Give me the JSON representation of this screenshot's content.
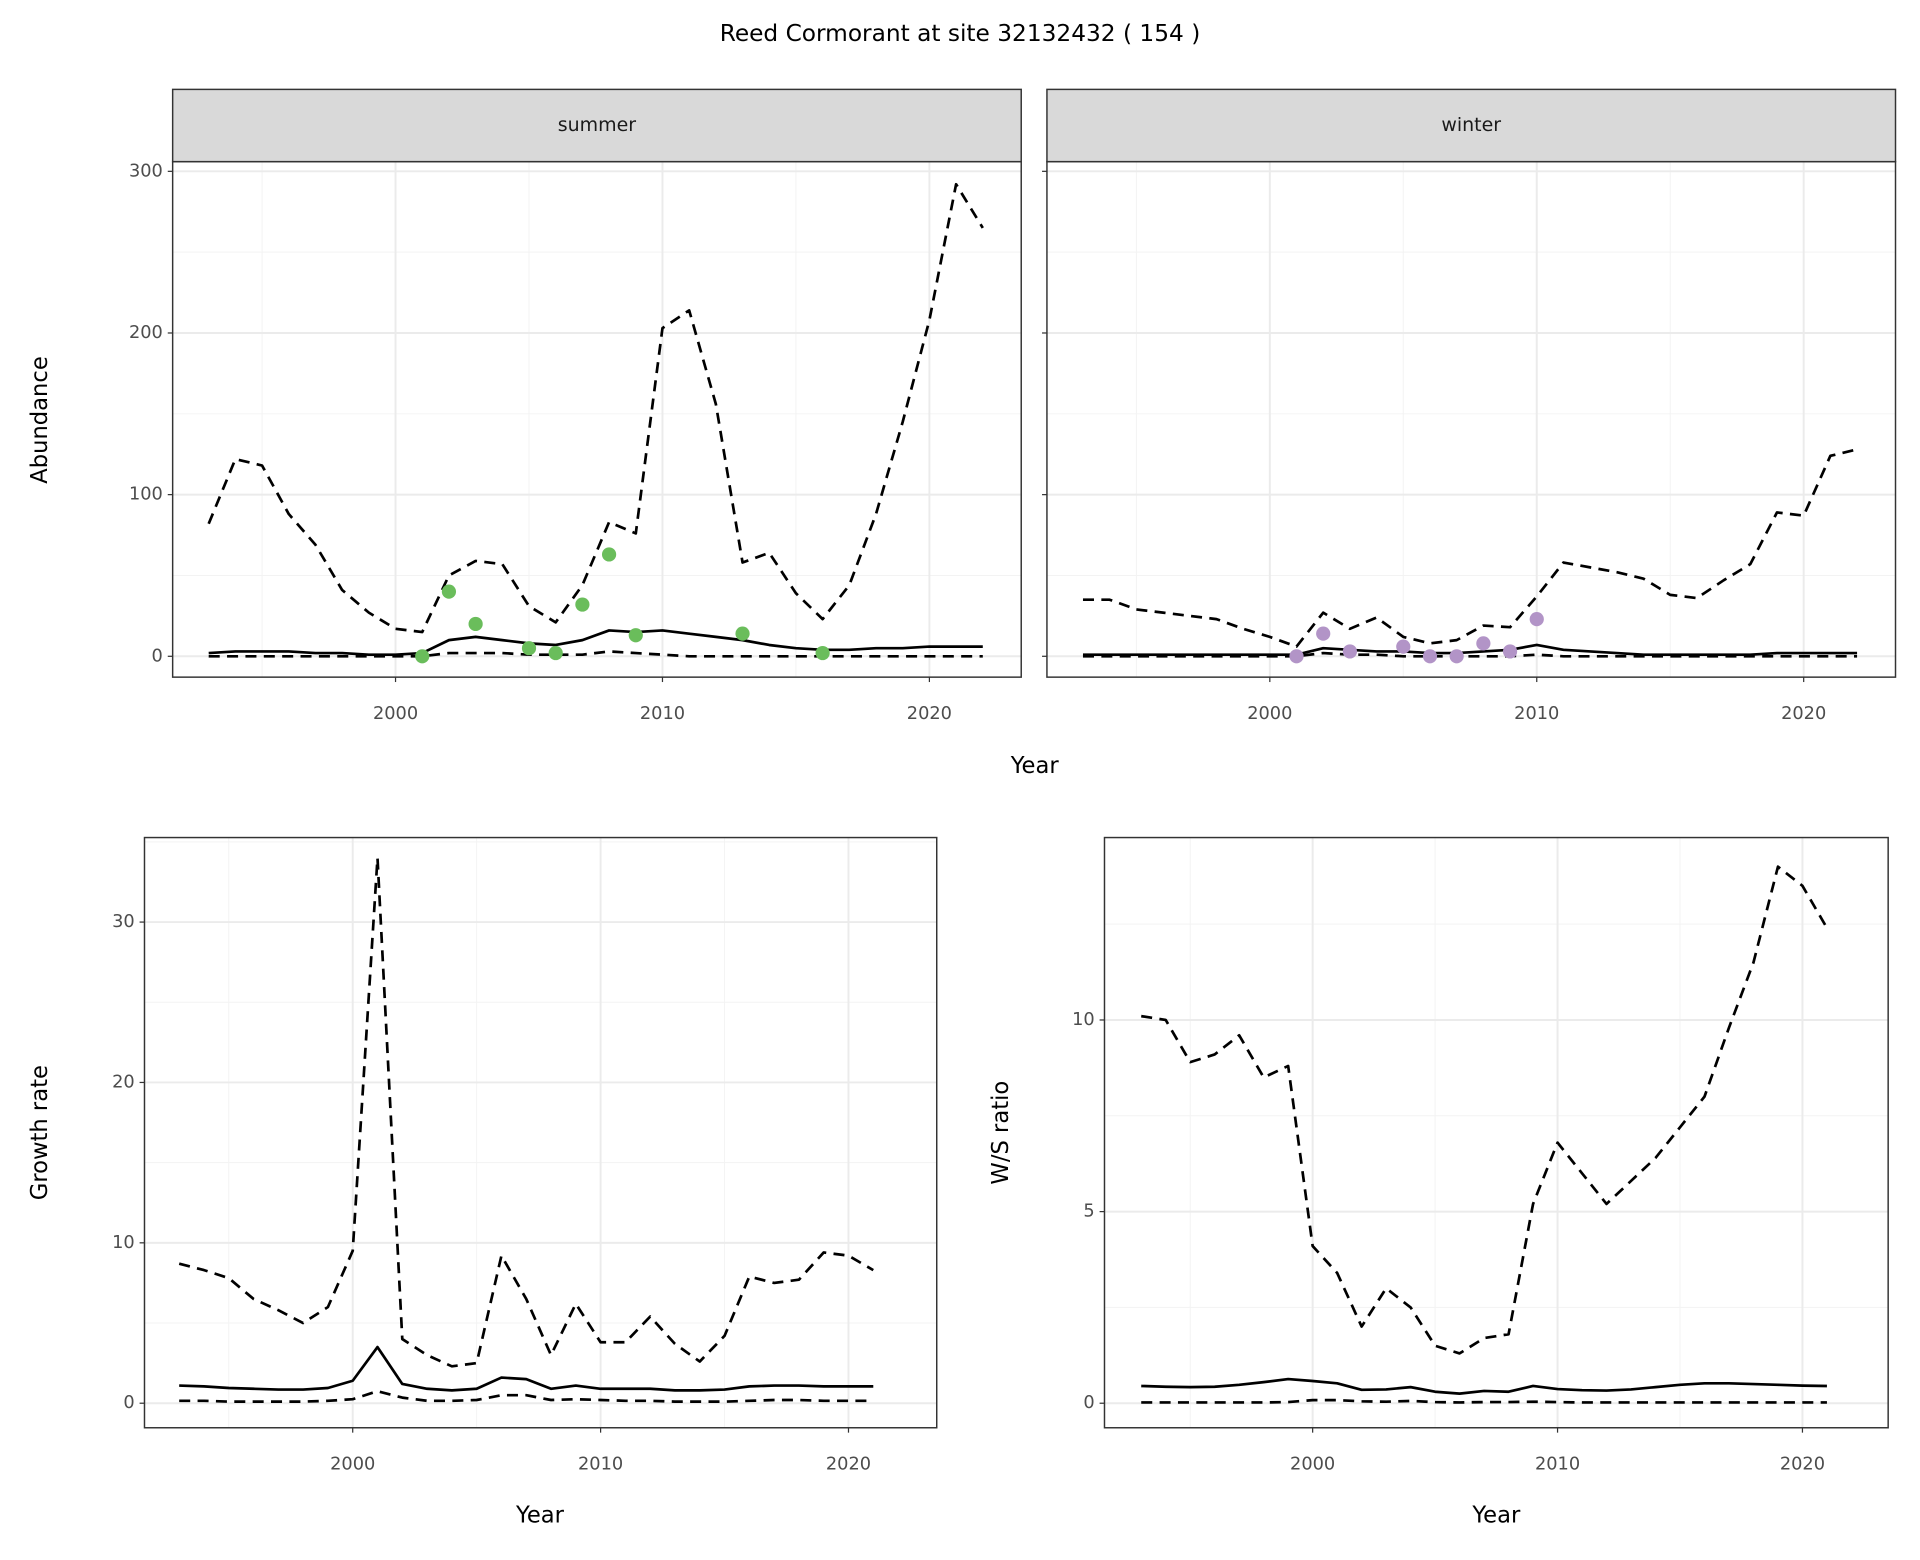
{
  "title": "Reed Cormorant at site 32132432 ( 154 )",
  "chart_data": [
    {
      "type": "line",
      "title": "summer",
      "xlabel": "Year",
      "ylabel": "Abundance",
      "grid": true,
      "ytick_labels": true,
      "x": [
        1993,
        1994,
        1995,
        1996,
        1997,
        1998,
        1999,
        2000,
        2001,
        2002,
        2003,
        2004,
        2005,
        2006,
        2007,
        2008,
        2009,
        2010,
        2011,
        2012,
        2013,
        2014,
        2015,
        2016,
        2017,
        2018,
        2019,
        2020,
        2021,
        2022
      ],
      "xlim": [
        1991.65,
        2023.44
      ],
      "xticks": [
        2000,
        2010,
        2020
      ],
      "minor_xticks": [
        1995,
        2005,
        2015
      ],
      "ylim": [
        -12.9,
        306
      ],
      "yticks": [
        0,
        100,
        200,
        300
      ],
      "minor_yticks": [
        50,
        150,
        250
      ],
      "series": [
        {
          "kind": "line",
          "dash": false,
          "color": "#000000",
          "values": [
            2,
            3,
            3,
            3,
            2,
            2,
            1,
            1,
            2,
            10,
            12,
            10,
            8,
            7,
            10,
            16,
            15,
            16,
            14,
            12,
            10,
            7,
            5,
            4,
            4,
            5,
            5,
            6,
            6,
            6
          ]
        },
        {
          "kind": "line",
          "dash": true,
          "color": "#000000",
          "values": [
            82,
            122,
            118,
            88,
            69,
            41,
            27,
            17,
            15,
            50,
            59,
            57,
            31,
            21,
            44,
            83,
            76,
            203,
            214,
            156,
            58,
            64,
            39,
            23,
            44,
            88,
            145,
            208,
            292,
            265
          ]
        },
        {
          "kind": "line",
          "dash": true,
          "color": "#000000",
          "values": [
            0,
            0,
            0,
            0,
            0,
            0,
            0,
            0,
            0,
            2,
            2,
            2,
            1,
            1,
            1,
            3,
            2,
            1,
            0,
            0,
            0,
            0,
            0,
            0,
            0,
            0,
            0,
            0,
            0,
            0
          ]
        },
        {
          "kind": "points",
          "color": "#6abd5b",
          "x": [
            2001,
            2002,
            2003,
            2005,
            2006,
            2007,
            2008,
            2009,
            2013,
            2016
          ],
          "values": [
            0,
            40,
            20,
            5,
            2,
            32,
            63,
            13,
            14,
            2
          ]
        }
      ]
    },
    {
      "type": "line",
      "title": "winter",
      "grid": true,
      "ytick_labels": false,
      "x": [
        1993,
        1994,
        1995,
        1996,
        1997,
        1998,
        1999,
        2000,
        2001,
        2002,
        2003,
        2004,
        2005,
        2006,
        2007,
        2008,
        2009,
        2010,
        2011,
        2012,
        2013,
        2014,
        2015,
        2016,
        2017,
        2018,
        2019,
        2020,
        2021,
        2022
      ],
      "xlim": [
        1991.65,
        2023.44
      ],
      "xticks": [
        2000,
        2010,
        2020
      ],
      "minor_xticks": [
        1995,
        2005,
        2015
      ],
      "ylim": [
        -12.9,
        306
      ],
      "yticks": [
        0,
        100,
        200,
        300
      ],
      "minor_yticks": [
        50,
        150,
        250
      ],
      "series": [
        {
          "kind": "line",
          "dash": false,
          "color": "#000000",
          "values": [
            1,
            1,
            1,
            1,
            1,
            1,
            1,
            1,
            1,
            5,
            4,
            3,
            3,
            2,
            2,
            3,
            4,
            7,
            4,
            3,
            2,
            1,
            1,
            1,
            1,
            1,
            2,
            2,
            2,
            2
          ]
        },
        {
          "kind": "line",
          "dash": true,
          "color": "#000000",
          "values": [
            35,
            35,
            29,
            27,
            25,
            23,
            17,
            12,
            6,
            27,
            17,
            24,
            12,
            8,
            10,
            19,
            18,
            37,
            58,
            55,
            52,
            48,
            38,
            36,
            47,
            57,
            89,
            87,
            124,
            128
          ]
        },
        {
          "kind": "line",
          "dash": true,
          "color": "#000000",
          "values": [
            0,
            0,
            0,
            0,
            0,
            0,
            0,
            0,
            0,
            2,
            1,
            1,
            0,
            0,
            0,
            0,
            0,
            1,
            0,
            0,
            0,
            0,
            0,
            0,
            0,
            0,
            0,
            0,
            0,
            0
          ]
        },
        {
          "kind": "points",
          "color": "#b294c7",
          "x": [
            2001,
            2002,
            2003,
            2005,
            2006,
            2007,
            2008,
            2009,
            2010
          ],
          "values": [
            0,
            14,
            3,
            6,
            0,
            0,
            8,
            3,
            23
          ]
        }
      ]
    },
    {
      "type": "line",
      "xlabel": "Year",
      "ylabel": "Growth rate",
      "grid": true,
      "ytick_labels": true,
      "x": [
        1993,
        1994,
        1995,
        1996,
        1997,
        1998,
        1999,
        2000,
        2001,
        2002,
        2003,
        2004,
        2005,
        2006,
        2007,
        2008,
        2009,
        2010,
        2011,
        2012,
        2013,
        2014,
        2015,
        2016,
        2017,
        2018,
        2019,
        2020,
        2021
      ],
      "xlim": [
        1991.6,
        2023.56
      ],
      "xticks": [
        2000,
        2010,
        2020
      ],
      "minor_xticks": [
        1995,
        2005,
        2015
      ],
      "ylim": [
        -1.53,
        35.27
      ],
      "yticks": [
        0,
        10,
        20,
        30
      ],
      "minor_yticks": [
        5,
        15,
        25,
        35
      ],
      "series": [
        {
          "kind": "line",
          "dash": false,
          "color": "#000000",
          "values": [
            1.1,
            1.05,
            0.95,
            0.9,
            0.85,
            0.85,
            0.95,
            1.4,
            3.5,
            1.2,
            0.9,
            0.8,
            0.9,
            1.6,
            1.5,
            0.9,
            1.1,
            0.9,
            0.9,
            0.9,
            0.8,
            0.8,
            0.85,
            1.05,
            1.1,
            1.1,
            1.05,
            1.05,
            1.05
          ]
        },
        {
          "kind": "line",
          "dash": true,
          "color": "#000000",
          "values": [
            8.7,
            8.3,
            7.8,
            6.5,
            5.8,
            5.0,
            6.0,
            9.5,
            34,
            4.0,
            3.0,
            2.3,
            2.5,
            9.2,
            6.5,
            3.0,
            6.2,
            3.8,
            3.8,
            5.4,
            3.7,
            2.6,
            4.2,
            7.9,
            7.5,
            7.7,
            9.4,
            9.2,
            8.3
          ]
        },
        {
          "kind": "line",
          "dash": true,
          "color": "#000000",
          "values": [
            0.15,
            0.15,
            0.1,
            0.1,
            0.1,
            0.1,
            0.15,
            0.25,
            0.75,
            0.35,
            0.15,
            0.15,
            0.2,
            0.5,
            0.5,
            0.2,
            0.25,
            0.2,
            0.15,
            0.15,
            0.1,
            0.1,
            0.1,
            0.15,
            0.2,
            0.2,
            0.15,
            0.15,
            0.15
          ]
        }
      ]
    },
    {
      "type": "line",
      "xlabel": "Year",
      "ylabel": "W/S ratio",
      "grid": true,
      "ytick_labels": true,
      "x": [
        1993,
        1994,
        1995,
        1996,
        1997,
        1998,
        1999,
        2000,
        2001,
        2002,
        2003,
        2004,
        2005,
        2006,
        2007,
        2008,
        2009,
        2010,
        2011,
        2012,
        2013,
        2014,
        2015,
        2016,
        2017,
        2018,
        2019,
        2020,
        2021
      ],
      "xlim": [
        1991.5,
        2023.5
      ],
      "xticks": [
        2000,
        2010,
        2020
      ],
      "minor_xticks": [
        1995,
        2005,
        2015
      ],
      "ylim": [
        -0.64,
        14.76
      ],
      "yticks": [
        0,
        5,
        10
      ],
      "minor_yticks": [
        2.5,
        7.5,
        12.5
      ],
      "series": [
        {
          "kind": "line",
          "dash": false,
          "color": "#000000",
          "values": [
            0.45,
            0.43,
            0.42,
            0.43,
            0.48,
            0.55,
            0.63,
            0.58,
            0.52,
            0.35,
            0.36,
            0.42,
            0.3,
            0.25,
            0.32,
            0.3,
            0.45,
            0.37,
            0.34,
            0.33,
            0.36,
            0.42,
            0.48,
            0.52,
            0.52,
            0.5,
            0.48,
            0.46,
            0.45
          ]
        },
        {
          "kind": "line",
          "dash": true,
          "color": "#000000",
          "values": [
            10.1,
            10.0,
            8.9,
            9.1,
            9.6,
            8.5,
            8.8,
            4.1,
            3.4,
            2.0,
            3.0,
            2.5,
            1.5,
            1.3,
            1.7,
            1.8,
            5.2,
            6.8,
            6.0,
            5.2,
            5.8,
            6.4,
            7.2,
            8.0,
            9.8,
            11.5,
            14.0,
            13.5,
            12.4
          ]
        },
        {
          "kind": "line",
          "dash": true,
          "color": "#000000",
          "values": [
            0.02,
            0.02,
            0.02,
            0.02,
            0.02,
            0.02,
            0.03,
            0.08,
            0.08,
            0.05,
            0.04,
            0.06,
            0.03,
            0.02,
            0.03,
            0.03,
            0.04,
            0.03,
            0.02,
            0.02,
            0.02,
            0.02,
            0.02,
            0.02,
            0.02,
            0.02,
            0.02,
            0.02,
            0.02
          ]
        }
      ]
    }
  ]
}
